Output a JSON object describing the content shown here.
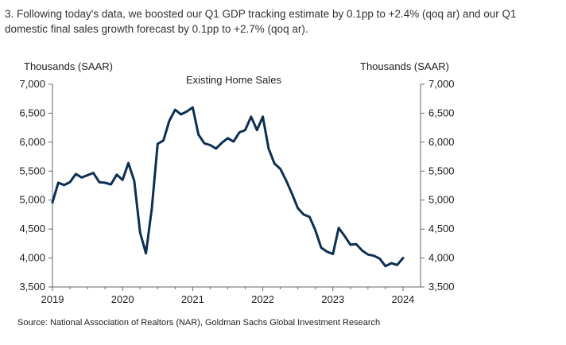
{
  "intro_text": "3. Following today's data, we boosted our Q1 GDP tracking estimate by 0.1pp to +2.4% (qoq ar) and our Q1 domestic final sales growth forecast by 0.1pp to +2.7% (qoq ar).",
  "source_text": "Source: National Association of Realtors (NAR), Goldman Sachs Global Investment Research",
  "chart_data": {
    "type": "line",
    "title": "Existing Home Sales",
    "ylabel_left": "Thousands  (SAAR)",
    "ylabel_right": "Thousands  (SAAR)",
    "ylim": [
      3500,
      7000
    ],
    "yticks": [
      "3,500",
      "4,000",
      "4,500",
      "5,000",
      "5,500",
      "6,000",
      "6,500",
      "7,000"
    ],
    "ytick_values": [
      3500,
      4000,
      4500,
      5000,
      5500,
      6000,
      6500,
      7000
    ],
    "xlim": [
      2019,
      2024.25
    ],
    "xticks": [
      "2019",
      "2020",
      "2021",
      "2022",
      "2023",
      "2024"
    ],
    "xtick_values": [
      2019,
      2020,
      2021,
      2022,
      2023,
      2024
    ],
    "grid": false,
    "series_color": "#0d2f52",
    "series": [
      {
        "x": [
          2019.0,
          2019.083,
          2019.167,
          2019.25,
          2019.333,
          2019.417,
          2019.5,
          2019.583,
          2019.667,
          2019.75,
          2019.833,
          2019.917,
          2020.0,
          2020.083,
          2020.167,
          2020.25,
          2020.333,
          2020.417,
          2020.5,
          2020.583,
          2020.667,
          2020.75,
          2020.833,
          2020.917,
          2021.0,
          2021.083,
          2021.167,
          2021.25,
          2021.333,
          2021.417,
          2021.5,
          2021.583,
          2021.667,
          2021.75,
          2021.833,
          2021.917,
          2022.0,
          2022.083,
          2022.167,
          2022.25,
          2022.333,
          2022.417,
          2022.5,
          2022.583,
          2022.667,
          2022.75,
          2022.833,
          2022.917,
          2023.0,
          2023.083,
          2023.167,
          2023.25,
          2023.333,
          2023.417,
          2023.5,
          2023.583,
          2023.667,
          2023.75,
          2023.833,
          2023.917,
          2024.0,
          2024.083
        ],
        "values": [
          4960,
          5300,
          5260,
          5310,
          5450,
          5390,
          5430,
          5470,
          5310,
          5300,
          5270,
          5440,
          5350,
          5640,
          5330,
          4440,
          4080,
          4860,
          5970,
          6030,
          6370,
          6560,
          6480,
          6530,
          6600,
          6130,
          5980,
          5950,
          5890,
          5990,
          6070,
          6010,
          6170,
          6210,
          6440,
          6210,
          6440,
          5890,
          5630,
          5540,
          5340,
          5110,
          4860,
          4750,
          4710,
          4480,
          4180,
          4110,
          4070,
          4520,
          4380,
          4230,
          4240,
          4130,
          4060,
          4040,
          3990,
          3860,
          3910,
          3880,
          4000,
          null
        ]
      }
    ]
  }
}
